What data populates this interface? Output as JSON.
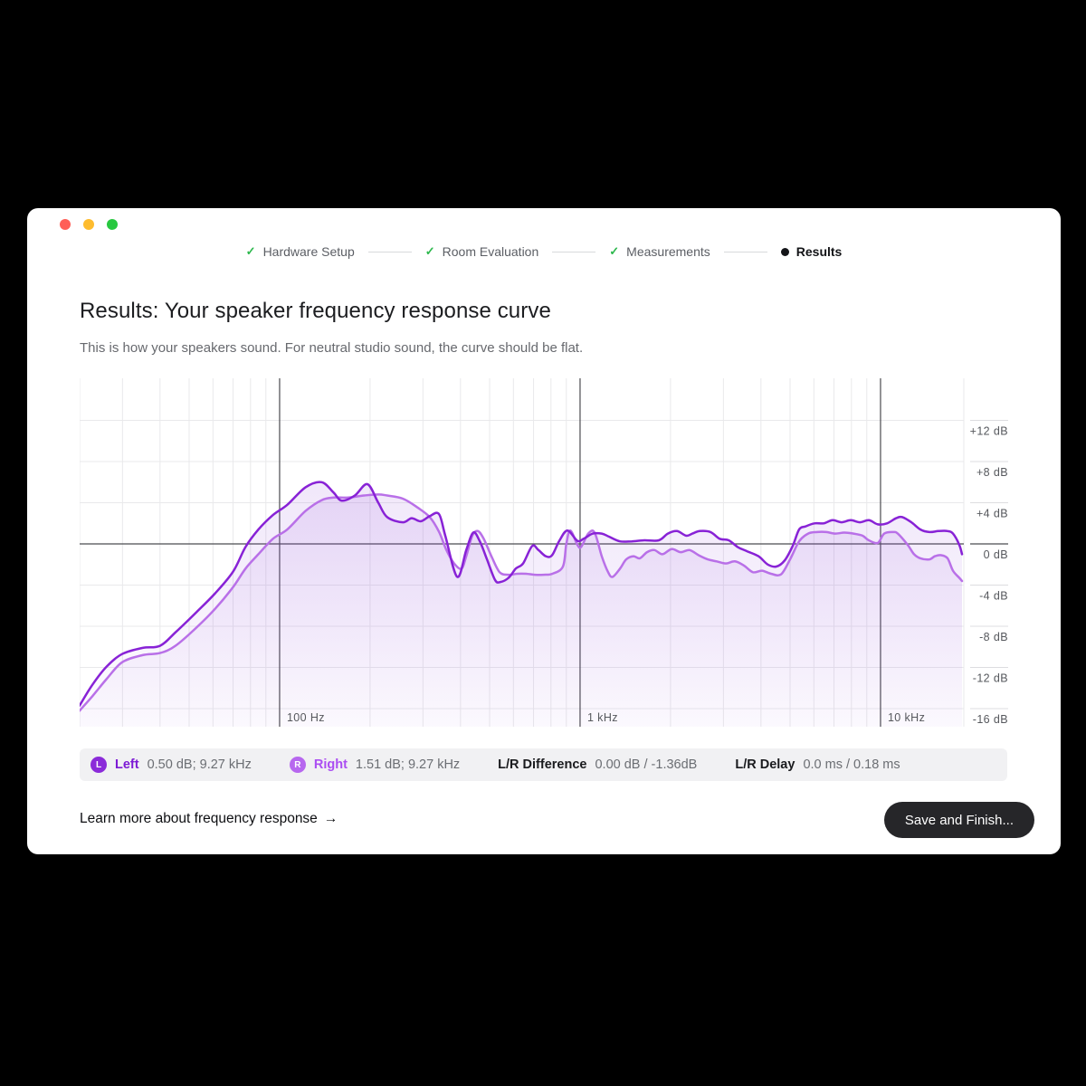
{
  "window_controls": {
    "close_color": "#ff5f57",
    "minimize_color": "#febc2e",
    "zoom_color": "#28c840"
  },
  "stepper": {
    "check_glyph": "✓",
    "check_color": "#2db84d",
    "steps": [
      {
        "label": "Hardware Setup",
        "state": "complete"
      },
      {
        "label": "Room Evaluation",
        "state": "complete"
      },
      {
        "label": "Measurements",
        "state": "complete"
      },
      {
        "label": "Results",
        "state": "active"
      }
    ]
  },
  "header": {
    "title": "Results: Your speaker frequency response curve",
    "subtitle": "This is how your speakers sound. For neutral studio sound, the curve should be flat."
  },
  "chart_data": {
    "type": "line",
    "x_axis": {
      "scale": "log",
      "unit": "Hz",
      "min": 21.6,
      "max": 18950,
      "labeled_ticks": [
        {
          "value": 100,
          "label": "100 Hz"
        },
        {
          "value": 1000,
          "label": "1 kHz"
        },
        {
          "value": 10000,
          "label": "10 kHz"
        }
      ],
      "minor_ticks": [
        30,
        40,
        50,
        60,
        70,
        80,
        90,
        200,
        300,
        400,
        500,
        600,
        700,
        800,
        900,
        2000,
        3000,
        4000,
        5000,
        6000,
        7000,
        8000,
        9000
      ]
    },
    "y_axis": {
      "unit": "dB",
      "min": -17.8,
      "max": 16.1,
      "zero_emphasized": true,
      "ticks": [
        {
          "value": 12,
          "label": "+12 dB"
        },
        {
          "value": 8,
          "label": "+8 dB"
        },
        {
          "value": 4,
          "label": "+4 dB"
        },
        {
          "value": 0,
          "label": "0 dB"
        },
        {
          "value": -4,
          "label": "-4 dB"
        },
        {
          "value": -8,
          "label": "-8 dB"
        },
        {
          "value": -12,
          "label": "-12 dB"
        },
        {
          "value": -16,
          "label": "-16 dB"
        }
      ]
    },
    "grid": true,
    "grid_color": "#e9e9eb",
    "axis_emphasis_color": "#4b4c50",
    "fill_gradient": {
      "from": "rgba(136,60,214,0.12)",
      "to": "rgba(136,60,214,0.015)"
    },
    "series": [
      {
        "name": "Left",
        "color": "#8822d6",
        "points": [
          [
            21.6,
            -15.7
          ],
          [
            23.8,
            -13.7
          ],
          [
            26.6,
            -11.9
          ],
          [
            29.9,
            -10.7
          ],
          [
            35,
            -10.1
          ],
          [
            40,
            -9.9
          ],
          [
            45,
            -8.6
          ],
          [
            53,
            -6.6
          ],
          [
            61,
            -4.8
          ],
          [
            70,
            -2.7
          ],
          [
            77,
            -0.3
          ],
          [
            85,
            1.4
          ],
          [
            95,
            2.8
          ],
          [
            106,
            3.8
          ],
          [
            122,
            5.5
          ],
          [
            138,
            6.0
          ],
          [
            151,
            5.0
          ],
          [
            161,
            4.2
          ],
          [
            178,
            4.7
          ],
          [
            196,
            5.8
          ],
          [
            213,
            4.0
          ],
          [
            228,
            2.6
          ],
          [
            257,
            2.1
          ],
          [
            275,
            2.5
          ],
          [
            295,
            2.2
          ],
          [
            316,
            2.7
          ],
          [
            339,
            2.9
          ],
          [
            356,
            0.8
          ],
          [
            390,
            -3.2
          ],
          [
            418,
            -0.6
          ],
          [
            441,
            1.1
          ],
          [
            463,
            0.3
          ],
          [
            490,
            -1.5
          ],
          [
            521,
            -3.5
          ],
          [
            543,
            -3.7
          ],
          [
            578,
            -3.3
          ],
          [
            611,
            -2.4
          ],
          [
            646,
            -1.9
          ],
          [
            693,
            -0.2
          ],
          [
            727,
            -0.6
          ],
          [
            769,
            -1.2
          ],
          [
            807,
            -1.1
          ],
          [
            853,
            0.3
          ],
          [
            908,
            1.3
          ],
          [
            980,
            0.3
          ],
          [
            1028,
            0.5
          ],
          [
            1102,
            1.0
          ],
          [
            1181,
            1.0
          ],
          [
            1249,
            0.7
          ],
          [
            1358,
            0.25
          ],
          [
            1485,
            0.25
          ],
          [
            1637,
            0.35
          ],
          [
            1829,
            0.35
          ],
          [
            1960,
            1.0
          ],
          [
            2102,
            1.25
          ],
          [
            2253,
            0.8
          ],
          [
            2365,
            1.0
          ],
          [
            2500,
            1.25
          ],
          [
            2717,
            1.15
          ],
          [
            2914,
            0.5
          ],
          [
            3123,
            0.35
          ],
          [
            3346,
            -0.3
          ],
          [
            3588,
            -0.7
          ],
          [
            3925,
            -1.2
          ],
          [
            4215,
            -2.0
          ],
          [
            4500,
            -2.2
          ],
          [
            4800,
            -1.6
          ],
          [
            5100,
            -0.2
          ],
          [
            5360,
            1.4
          ],
          [
            5625,
            1.7
          ],
          [
            6030,
            2.0
          ],
          [
            6460,
            2.0
          ],
          [
            6925,
            2.3
          ],
          [
            7420,
            2.1
          ],
          [
            7955,
            2.3
          ],
          [
            8535,
            2.1
          ],
          [
            9150,
            2.3
          ],
          [
            9800,
            1.9
          ],
          [
            10510,
            2.0
          ],
          [
            11270,
            2.5
          ],
          [
            11820,
            2.6
          ],
          [
            12670,
            2.1
          ],
          [
            13580,
            1.4
          ],
          [
            14550,
            1.15
          ],
          [
            15590,
            1.25
          ],
          [
            16710,
            1.25
          ],
          [
            17420,
            1.0
          ],
          [
            18290,
            -0.1
          ],
          [
            18670,
            -1.0
          ]
        ]
      },
      {
        "name": "Right",
        "color": "#b970e8",
        "points": [
          [
            21.6,
            -16.2
          ],
          [
            23.8,
            -14.8
          ],
          [
            26.6,
            -13.1
          ],
          [
            29.9,
            -11.5
          ],
          [
            35,
            -10.8
          ],
          [
            40,
            -10.6
          ],
          [
            45,
            -9.9
          ],
          [
            53,
            -8.1
          ],
          [
            61,
            -6.3
          ],
          [
            70,
            -4.2
          ],
          [
            77,
            -2.4
          ],
          [
            85,
            -1.0
          ],
          [
            95,
            0.5
          ],
          [
            106,
            1.4
          ],
          [
            122,
            3.2
          ],
          [
            138,
            4.25
          ],
          [
            151,
            4.5
          ],
          [
            169,
            4.5
          ],
          [
            191,
            4.7
          ],
          [
            213,
            4.8
          ],
          [
            228,
            4.7
          ],
          [
            257,
            4.4
          ],
          [
            289,
            3.5
          ],
          [
            316,
            2.6
          ],
          [
            339,
            1.2
          ],
          [
            359,
            -0.6
          ],
          [
            381,
            -1.9
          ],
          [
            403,
            -2.4
          ],
          [
            418,
            -1.2
          ],
          [
            438,
            0.8
          ],
          [
            457,
            1.25
          ],
          [
            478,
            0.5
          ],
          [
            507,
            -1.2
          ],
          [
            540,
            -2.75
          ],
          [
            578,
            -3.0
          ],
          [
            618,
            -2.9
          ],
          [
            661,
            -2.9
          ],
          [
            707,
            -3.0
          ],
          [
            756,
            -3.0
          ],
          [
            809,
            -2.9
          ],
          [
            877,
            -2.2
          ],
          [
            900,
            0.0
          ],
          [
            928,
            1.3
          ],
          [
            980,
            -0.1
          ],
          [
            1008,
            -0.3
          ],
          [
            1065,
            1.0
          ],
          [
            1118,
            1.1
          ],
          [
            1181,
            -1.2
          ],
          [
            1240,
            -2.75
          ],
          [
            1283,
            -3.2
          ],
          [
            1358,
            -2.4
          ],
          [
            1425,
            -1.5
          ],
          [
            1506,
            -1.2
          ],
          [
            1581,
            -1.4
          ],
          [
            1671,
            -0.8
          ],
          [
            1767,
            -0.6
          ],
          [
            1880,
            -1.0
          ],
          [
            2016,
            -0.5
          ],
          [
            2160,
            -0.8
          ],
          [
            2315,
            -0.6
          ],
          [
            2482,
            -1.1
          ],
          [
            2659,
            -1.5
          ],
          [
            2849,
            -1.7
          ],
          [
            3056,
            -1.9
          ],
          [
            3275,
            -1.7
          ],
          [
            3510,
            -2.1
          ],
          [
            3762,
            -2.75
          ],
          [
            4032,
            -2.6
          ],
          [
            4322,
            -2.9
          ],
          [
            4663,
            -2.95
          ],
          [
            5000,
            -1.5
          ],
          [
            5360,
            0.25
          ],
          [
            5744,
            1.0
          ],
          [
            6155,
            1.15
          ],
          [
            6596,
            1.15
          ],
          [
            7069,
            1.0
          ],
          [
            7579,
            1.1
          ],
          [
            8123,
            1.0
          ],
          [
            8707,
            0.8
          ],
          [
            9139,
            0.35
          ],
          [
            9796,
            0.1
          ],
          [
            10283,
            1.0
          ],
          [
            11023,
            1.15
          ],
          [
            11412,
            1.0
          ],
          [
            12314,
            -0.1
          ],
          [
            12928,
            -1.0
          ],
          [
            13575,
            -1.4
          ],
          [
            14549,
            -1.5
          ],
          [
            15168,
            -1.2
          ],
          [
            15917,
            -1.1
          ],
          [
            16712,
            -1.4
          ],
          [
            17420,
            -2.6
          ],
          [
            18287,
            -3.3
          ],
          [
            18673,
            -3.6
          ]
        ]
      }
    ]
  },
  "stats": {
    "items": [
      {
        "badge": "L",
        "label": "Left",
        "value": "0.50 dB; 9.27 kHz",
        "badge_color": "#8b2bd9",
        "label_color": "#7d1bd4"
      },
      {
        "badge": "R",
        "label": "Right",
        "value": "1.51 dB; 9.27 kHz",
        "badge_color": "#b767ef",
        "label_color": "#ab4ef2"
      },
      {
        "label": "L/R Difference",
        "value": "0.00 dB / -1.36dB"
      },
      {
        "label": "L/R Delay",
        "value": "0.0 ms / 0.18 ms"
      }
    ]
  },
  "footer": {
    "learn_more_label": "Learn more about frequency response",
    "arrow_glyph": "→",
    "save_button_label": "Save and Finish..."
  }
}
